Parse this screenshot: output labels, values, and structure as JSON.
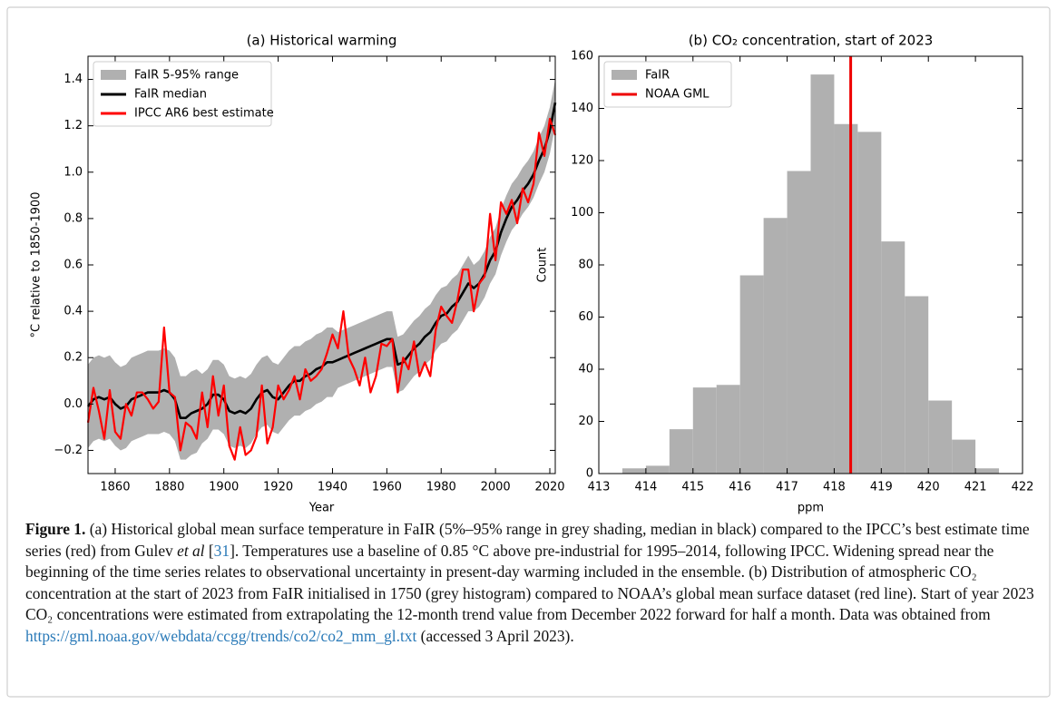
{
  "chart_data": [
    {
      "type": "line",
      "title": "(a) Historical warming",
      "x_label": "Year",
      "y_label": "°C relative to 1850-1900",
      "xlim": [
        1850,
        2022
      ],
      "ylim": [
        -0.3,
        1.5
      ],
      "xticks": [
        1860,
        1880,
        1900,
        1920,
        1940,
        1960,
        1980,
        2000,
        2020
      ],
      "yticks": [
        {
          "value": -0.2,
          "label": "−0.2"
        },
        {
          "value": 0,
          "label": "0.0"
        },
        0.2,
        0.4,
        0.6,
        0.8,
        {
          "value": 1,
          "label": "1.0"
        },
        1.2,
        1.4
      ],
      "legend": "upper left",
      "x": [
        1850,
        1852,
        1854,
        1856,
        1858,
        1860,
        1862,
        1864,
        1866,
        1868,
        1870,
        1872,
        1874,
        1876,
        1878,
        1880,
        1882,
        1884,
        1886,
        1888,
        1890,
        1892,
        1894,
        1896,
        1898,
        1900,
        1902,
        1904,
        1906,
        1908,
        1910,
        1912,
        1914,
        1916,
        1918,
        1920,
        1922,
        1924,
        1926,
        1928,
        1930,
        1932,
        1934,
        1936,
        1938,
        1940,
        1942,
        1944,
        1946,
        1948,
        1950,
        1952,
        1954,
        1956,
        1958,
        1960,
        1962,
        1964,
        1966,
        1968,
        1970,
        1972,
        1974,
        1976,
        1978,
        1980,
        1982,
        1984,
        1986,
        1988,
        1990,
        1992,
        1994,
        1996,
        1998,
        2000,
        2002,
        2004,
        2006,
        2008,
        2010,
        2012,
        2014,
        2016,
        2018,
        2020,
        2022
      ],
      "series": [
        {
          "name": "FaIR 5-95% range",
          "type": "band",
          "color": "#b0b0b0",
          "low": [
            -0.19,
            -0.16,
            -0.15,
            -0.16,
            -0.15,
            -0.18,
            -0.2,
            -0.19,
            -0.16,
            -0.15,
            -0.14,
            -0.13,
            -0.13,
            -0.13,
            -0.12,
            -0.13,
            -0.16,
            -0.24,
            -0.24,
            -0.22,
            -0.21,
            -0.17,
            -0.15,
            -0.11,
            -0.11,
            -0.13,
            -0.18,
            -0.19,
            -0.18,
            -0.19,
            -0.17,
            -0.13,
            -0.1,
            -0.09,
            -0.12,
            -0.13,
            -0.1,
            -0.07,
            -0.05,
            -0.05,
            -0.03,
            -0.02,
            0.0,
            0.01,
            0.03,
            0.03,
            0.07,
            0.08,
            0.09,
            0.1,
            0.11,
            0.12,
            0.13,
            0.14,
            0.15,
            0.16,
            0.16,
            0.05,
            0.06,
            0.09,
            0.12,
            0.14,
            0.17,
            0.19,
            0.23,
            0.26,
            0.27,
            0.3,
            0.32,
            0.36,
            0.4,
            0.4,
            0.42,
            0.46,
            0.52,
            0.56,
            0.64,
            0.7,
            0.75,
            0.78,
            0.82,
            0.85,
            0.89,
            0.95,
            1.0,
            1.08,
            1.2
          ],
          "high": [
            0.17,
            0.2,
            0.21,
            0.2,
            0.21,
            0.18,
            0.16,
            0.17,
            0.2,
            0.21,
            0.22,
            0.23,
            0.23,
            0.23,
            0.24,
            0.23,
            0.2,
            0.12,
            0.12,
            0.14,
            0.15,
            0.13,
            0.15,
            0.19,
            0.19,
            0.17,
            0.12,
            0.11,
            0.12,
            0.11,
            0.13,
            0.17,
            0.2,
            0.21,
            0.18,
            0.17,
            0.2,
            0.23,
            0.25,
            0.25,
            0.27,
            0.28,
            0.3,
            0.31,
            0.33,
            0.33,
            0.31,
            0.32,
            0.33,
            0.34,
            0.35,
            0.36,
            0.37,
            0.38,
            0.39,
            0.4,
            0.4,
            0.29,
            0.3,
            0.33,
            0.36,
            0.38,
            0.41,
            0.43,
            0.47,
            0.5,
            0.51,
            0.54,
            0.56,
            0.6,
            0.64,
            0.6,
            0.62,
            0.66,
            0.72,
            0.76,
            0.84,
            0.9,
            0.95,
            0.98,
            1.02,
            1.05,
            1.09,
            1.15,
            1.2,
            1.28,
            1.4
          ]
        },
        {
          "name": "FaIR median",
          "color": "#000000",
          "values": [
            -0.01,
            0.02,
            0.03,
            0.02,
            0.03,
            0.0,
            -0.02,
            -0.01,
            0.02,
            0.03,
            0.04,
            0.05,
            0.05,
            0.05,
            0.06,
            0.05,
            0.02,
            -0.06,
            -0.06,
            -0.04,
            -0.03,
            -0.02,
            0.0,
            0.04,
            0.04,
            0.02,
            -0.03,
            -0.04,
            -0.03,
            -0.04,
            -0.02,
            0.02,
            0.05,
            0.06,
            0.03,
            0.02,
            0.05,
            0.08,
            0.1,
            0.1,
            0.12,
            0.13,
            0.15,
            0.16,
            0.18,
            0.18,
            0.19,
            0.2,
            0.21,
            0.22,
            0.23,
            0.24,
            0.25,
            0.26,
            0.27,
            0.28,
            0.28,
            0.17,
            0.18,
            0.21,
            0.24,
            0.26,
            0.29,
            0.31,
            0.35,
            0.38,
            0.39,
            0.42,
            0.44,
            0.48,
            0.52,
            0.5,
            0.52,
            0.56,
            0.62,
            0.66,
            0.74,
            0.8,
            0.85,
            0.88,
            0.92,
            0.95,
            0.99,
            1.05,
            1.1,
            1.18,
            1.3
          ]
        },
        {
          "name": "IPCC AR6 best estimate",
          "color": "#ff0000",
          "values": [
            -0.08,
            0.07,
            -0.03,
            -0.15,
            0.06,
            -0.12,
            -0.15,
            0.0,
            -0.05,
            0.05,
            0.05,
            0.02,
            -0.02,
            0.01,
            0.33,
            0.05,
            0.03,
            -0.2,
            -0.08,
            -0.1,
            -0.15,
            0.05,
            -0.1,
            0.12,
            -0.05,
            0.08,
            -0.18,
            -0.24,
            -0.1,
            -0.22,
            -0.2,
            -0.14,
            0.08,
            -0.17,
            -0.1,
            0.08,
            0.02,
            0.06,
            0.12,
            0.02,
            0.15,
            0.1,
            0.12,
            0.15,
            0.22,
            0.3,
            0.24,
            0.4,
            0.2,
            0.15,
            0.08,
            0.2,
            0.05,
            0.12,
            0.26,
            0.25,
            0.28,
            0.05,
            0.2,
            0.15,
            0.27,
            0.12,
            0.18,
            0.12,
            0.32,
            0.42,
            0.38,
            0.35,
            0.45,
            0.58,
            0.58,
            0.4,
            0.52,
            0.55,
            0.82,
            0.62,
            0.87,
            0.82,
            0.88,
            0.78,
            0.93,
            0.87,
            0.95,
            1.17,
            1.07,
            1.23,
            1.16
          ]
        }
      ]
    },
    {
      "type": "histogram",
      "title": "(b) CO₂ concentration, start of 2023",
      "x_label": "ppm",
      "y_label": "Count",
      "xlim": [
        413,
        422
      ],
      "ylim": [
        0,
        160
      ],
      "xticks": [
        413,
        414,
        415,
        416,
        417,
        418,
        419,
        420,
        421,
        422
      ],
      "yticks": [
        0,
        20,
        40,
        60,
        80,
        100,
        120,
        140,
        160
      ],
      "legend": "upper left",
      "bins": [
        413.5,
        414,
        414.5,
        415,
        415.5,
        416,
        416.5,
        417,
        417.5,
        418,
        418.5,
        419,
        419.5,
        420,
        420.5,
        421,
        421.5
      ],
      "series": [
        {
          "name": "FaIR",
          "color": "#b0b0b0",
          "values": [
            2,
            3,
            17,
            33,
            34,
            76,
            98,
            116,
            153,
            134,
            131,
            89,
            68,
            28,
            13,
            2
          ]
        }
      ],
      "lines": [
        {
          "name": "NOAA GML",
          "color": "#ee0000",
          "x": 418.35
        }
      ]
    }
  ],
  "caption": {
    "label": "Figure 1.",
    "text_1": " (a) Historical global mean surface temperature in FaIR (5%–95% range in grey shading, median in black) compared to the IPCC’s best estimate time series (red) from Gulev ",
    "italic": "et al",
    "text_2": " [",
    "ref": "31",
    "text_3": "]. Temperatures use a baseline of 0.85 °C above pre-industrial for 1995–2014, following IPCC. Widening spread near the beginning of the time series relates to observational uncertainty in present-day warming included in the ensemble. (b) Distribution of atmospheric CO₂ concentration at the start of 2023 from FaIR initialised in 1750 (grey histogram) compared to NOAA’s global mean surface dataset (red line). Start of year 2023 CO₂ concentrations were estimated from extrapolating the 12-month trend value from December 2022 forward for half a month. Data was obtained from ",
    "url": "https://gml.noaa.gov/webdata/ccgg/trends/co2/co2_mm_gl.txt",
    "text_4": " (accessed 3 April 2023)."
  }
}
